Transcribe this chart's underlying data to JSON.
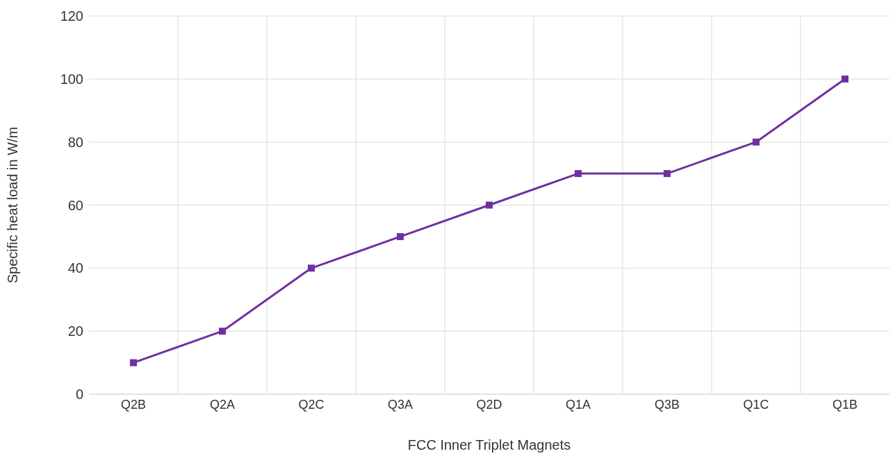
{
  "chart_data": {
    "type": "line",
    "xlabel": "FCC Inner Triplet Magnets",
    "ylabel": "Specific heat load in W/m",
    "categories": [
      "Q2B",
      "Q2A",
      "Q2C",
      "Q3A",
      "Q2D",
      "Q1A",
      "Q3B",
      "Q1C",
      "Q1B"
    ],
    "series": [
      {
        "color": "#7030a0",
        "values": [
          10,
          20,
          40,
          50,
          60,
          70,
          70,
          80,
          100
        ]
      }
    ],
    "ylim": [
      0,
      120
    ],
    "yticks": [
      0,
      20,
      40,
      60,
      80,
      100,
      120
    ],
    "grid": true,
    "marker": "square",
    "line_style": "solid"
  }
}
